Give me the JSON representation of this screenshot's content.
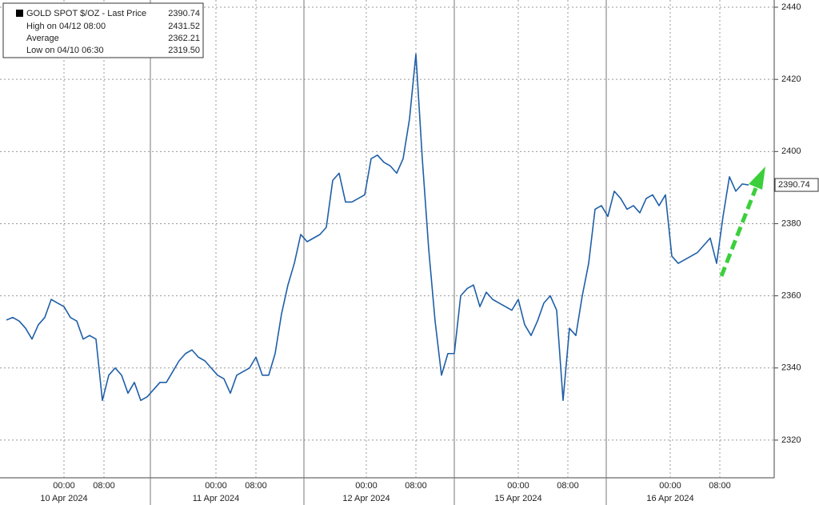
{
  "chart_data": {
    "type": "line",
    "series": [
      {
        "name": "GOLD SPOT $/OZ - Last Price",
        "color": "#1f5fa8",
        "values": [
          2353.3,
          2354,
          2353,
          2351,
          2348,
          2352,
          2354,
          2359,
          2358,
          2357,
          2354,
          2353,
          2348,
          2349,
          2348,
          2331,
          2338,
          2340,
          2338,
          2333,
          2336,
          2331,
          2332,
          2334,
          2336,
          2336,
          2339,
          2342,
          2344,
          2345,
          2343,
          2342,
          2340,
          2338,
          2337,
          2333,
          2338,
          2339,
          2340,
          2343,
          2338,
          2338,
          2344,
          2355,
          2363,
          2369,
          2377,
          2375,
          2376,
          2377,
          2379,
          2392,
          2394,
          2386,
          2386,
          2387,
          2388,
          2398,
          2399,
          2397,
          2396,
          2394,
          2398,
          2409,
          2427,
          2398,
          2373,
          2353,
          2338,
          2344,
          2344,
          2360,
          2362,
          2363,
          2357,
          2361,
          2359,
          2358,
          2357,
          2356,
          2359,
          2352,
          2349,
          2353,
          2358,
          2360,
          2356,
          2331,
          2351,
          2349,
          2360,
          2369,
          2384,
          2385,
          2382,
          2389,
          2387,
          2384,
          2385,
          2383,
          2387,
          2388,
          2385,
          2388,
          2371,
          2369,
          2370,
          2371,
          2372,
          2374,
          2376,
          2369,
          2382,
          2393,
          2389,
          2391,
          2390.74
        ]
      }
    ],
    "legend": [
      {
        "label": "High on 04/12 08:00",
        "value": 2431.52
      },
      {
        "label": "Average",
        "value": 2362.21
      },
      {
        "label": "Low on 04/10 06:30",
        "value": 2319.5,
        "value_label": "2319.50"
      }
    ],
    "last_price": 2390.74,
    "ylim": [
      2310,
      2442
    ],
    "yticks": [
      2320,
      2340,
      2360,
      2380,
      2400,
      2420,
      2440
    ],
    "xlim": [
      -1,
      120
    ],
    "xticks": [
      {
        "value": 9,
        "label": "00:00"
      },
      {
        "value": 15.25,
        "label": "08:00"
      },
      {
        "value": 32.75,
        "label": "00:00"
      },
      {
        "value": 39,
        "label": "08:00"
      },
      {
        "value": 56.25,
        "label": "00:00"
      },
      {
        "value": 64,
        "label": "08:00"
      },
      {
        "value": 80,
        "label": "00:00"
      },
      {
        "value": 87.75,
        "label": "08:00"
      },
      {
        "value": 103.75,
        "label": "00:00"
      },
      {
        "value": 111.5,
        "label": "08:00"
      }
    ],
    "date_labels": [
      {
        "value": 9,
        "label": "10 Apr 2024"
      },
      {
        "value": 32.75,
        "label": "11 Apr 2024"
      },
      {
        "value": 56.25,
        "label": "12 Apr 2024"
      },
      {
        "value": 80,
        "label": "15 Apr 2024"
      },
      {
        "value": 103.75,
        "label": "16 Apr 2024"
      }
    ],
    "day_separators": [
      22.5,
      46.5,
      70,
      93.75
    ],
    "grid": true
  }
}
